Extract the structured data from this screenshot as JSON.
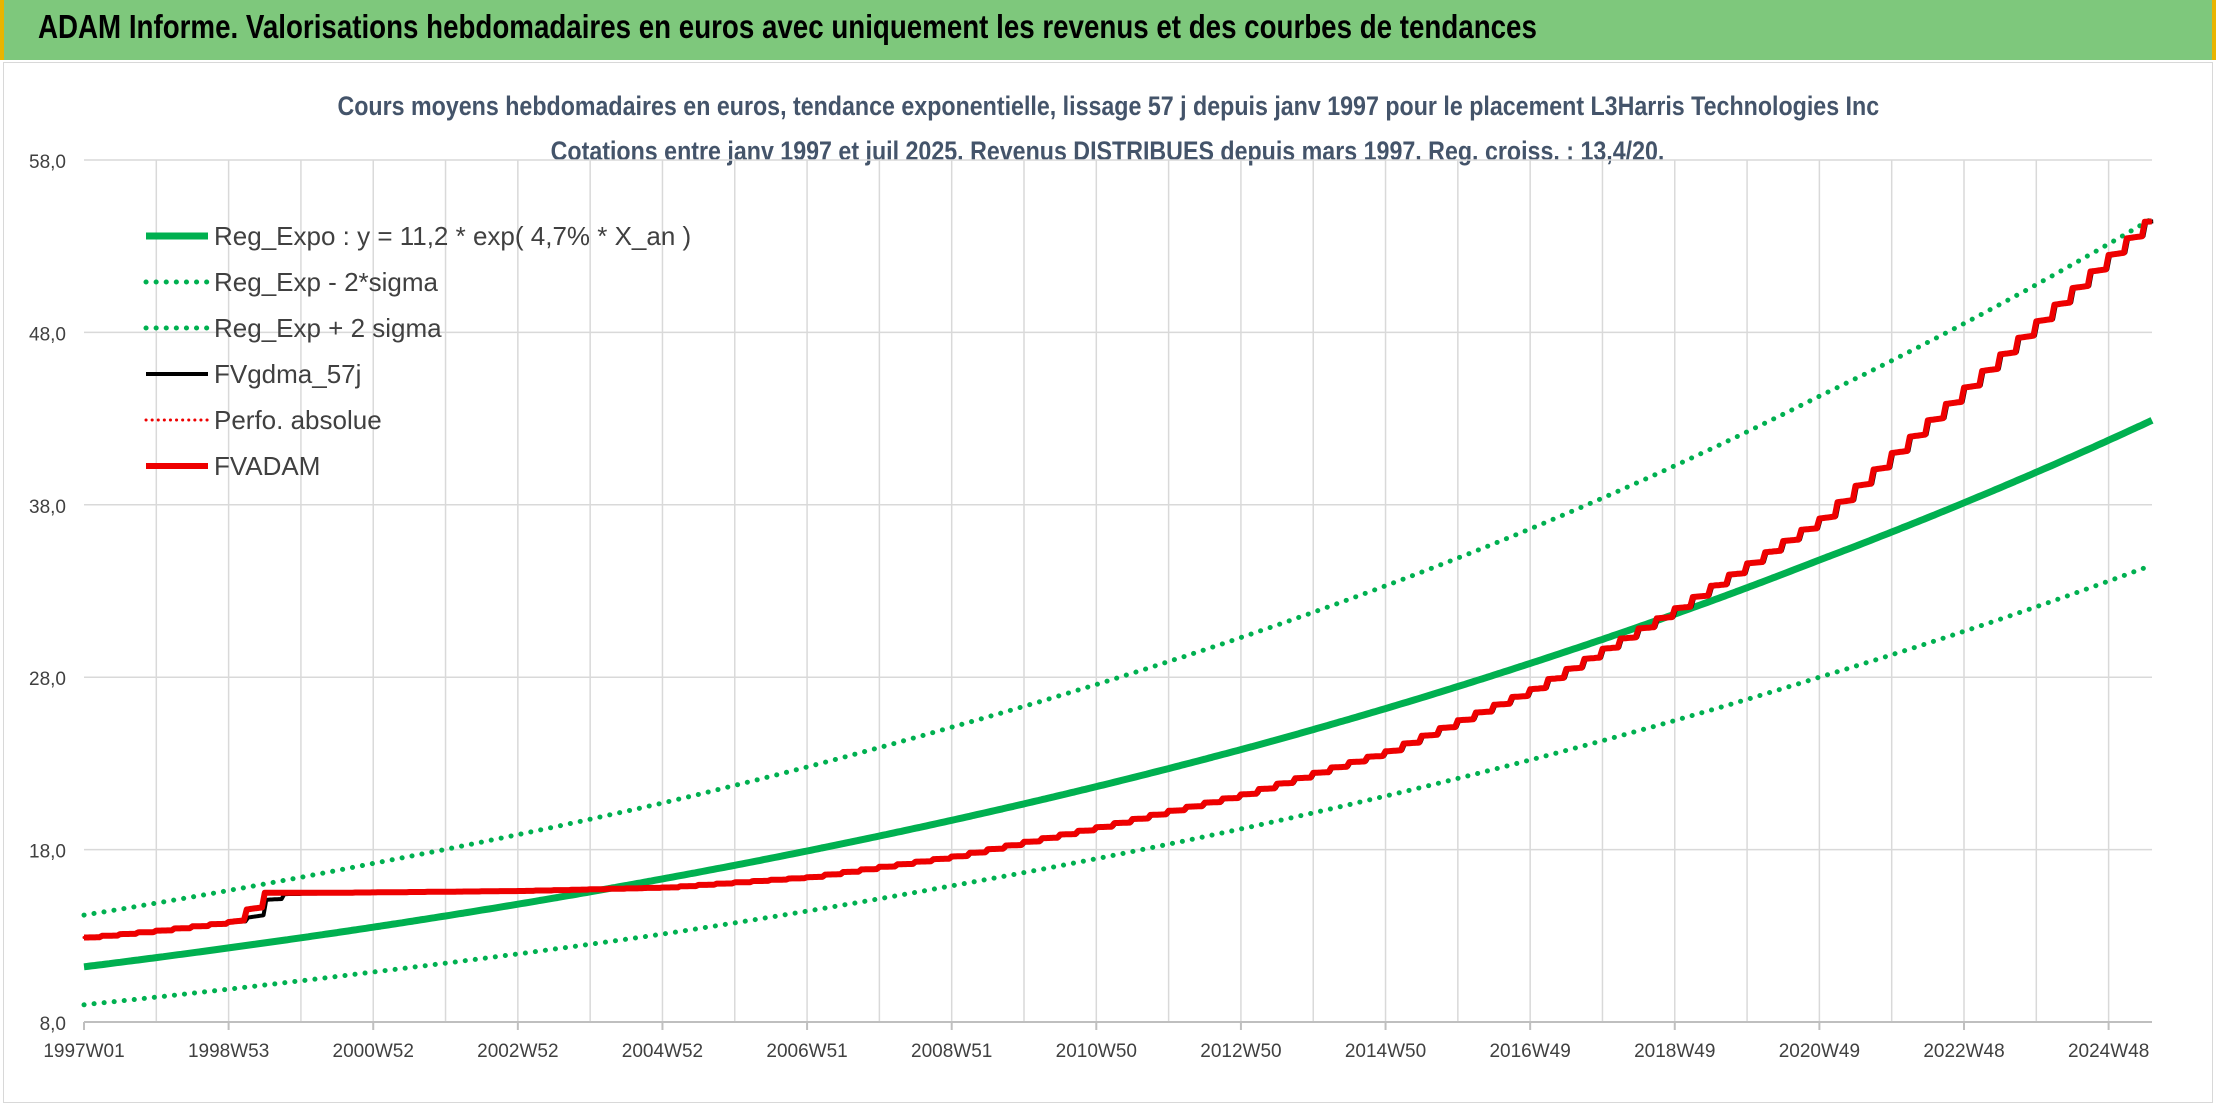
{
  "banner": {
    "title": "ADAM Informe. Valorisations hebdomadaires en euros avec uniquement les revenus et des courbes de tendances"
  },
  "colors": {
    "banner_bg": "#7ec87c",
    "banner_edge": "#e8b400",
    "title_text": "#44546a",
    "reg_green": "#00b050",
    "fvgdma_black": "#000000",
    "fvadam_red": "#ee0000",
    "grid": "#d9d9d9"
  },
  "chart_data": {
    "type": "line",
    "title": "Cours moyens hebdomadaires en euros, tendance exponentielle, lissage 57 j depuis janv 1997 pour le placement L3Harris Technologies Inc",
    "subtitle": "Cotations entre janv 1997 et juil 2025. Revenus DISTRIBUES depuis mars 1997. Reg. croiss. : 13,4/20.",
    "xlabel": "",
    "ylabel": "",
    "ylim": [
      8,
      58
    ],
    "yticks": [
      "58,0",
      "48,0",
      "38,0",
      "28,0",
      "18,0",
      "8,0"
    ],
    "xticks": [
      "1997W01",
      "1998W53",
      "2000W52",
      "2002W52",
      "2004W52",
      "2006W51",
      "2008W51",
      "2010W50",
      "2012W50",
      "2014W50",
      "2016W49",
      "2018W49",
      "2020W49",
      "2022W48",
      "2024W48"
    ],
    "x_years": [
      1997,
      1999,
      2001,
      2003,
      2005,
      2007,
      2009,
      2011,
      2013,
      2015,
      2017,
      2019,
      2021,
      2023,
      2025
    ],
    "x_range_years": [
      1997.0,
      2025.6
    ],
    "grid": true,
    "legend_position": "top-left",
    "series": [
      {
        "name": "Reg_Expo : y = 11,2 * exp( 4,7% *  X_an )",
        "style": "solid-thick",
        "color": "#00b050",
        "x": [
          1997.0,
          2001.0,
          2005.0,
          2009.0,
          2013.0,
          2017.0,
          2021.0,
          2025.6
        ],
        "y": [
          11.2,
          13.5,
          16.3,
          19.7,
          23.8,
          28.8,
          34.8,
          42.9
        ]
      },
      {
        "name": "Reg_Exp - 2*sigma",
        "style": "dotted",
        "color": "#00b050",
        "x": [
          1997.0,
          2001.0,
          2005.0,
          2009.0,
          2013.0,
          2017.0,
          2021.0,
          2025.6
        ],
        "y": [
          9.0,
          10.9,
          13.1,
          15.9,
          19.2,
          23.2,
          28.0,
          34.5
        ]
      },
      {
        "name": "Reg_Exp + 2 sigma",
        "style": "dotted",
        "color": "#00b050",
        "x": [
          1997.0,
          2001.0,
          2005.0,
          2009.0,
          2013.0,
          2017.0,
          2021.0,
          2025.6
        ],
        "y": [
          14.2,
          17.2,
          20.7,
          25.1,
          30.3,
          36.6,
          44.3,
          54.6
        ]
      },
      {
        "name": "FVgdma_57j",
        "style": "solid",
        "color": "#000000",
        "x": [
          1997.0,
          1998.0,
          1999.2,
          1999.42,
          1999.55,
          2000.5,
          2003.0,
          2005.0,
          2007.0,
          2009.0,
          2011.0,
          2013.0,
          2015.0,
          2017.0,
          2019.0,
          2021.0,
          2023.0,
          2025.6
        ],
        "y": [
          12.9,
          13.3,
          13.9,
          14.6,
          15.4,
          15.5,
          15.6,
          15.8,
          16.4,
          17.6,
          19.3,
          21.2,
          23.7,
          27.3,
          32.0,
          37.2,
          44.8,
          54.8
        ]
      },
      {
        "name": "Perfo. absolue",
        "style": "dotted",
        "color": "#ee0000",
        "x": [
          1997.0,
          1998.0,
          1999.2,
          1999.32,
          1999.4,
          2000.5,
          2003.0,
          2005.0,
          2007.0,
          2009.0,
          2011.0,
          2013.0,
          2015.0,
          2017.0,
          2019.0,
          2021.0,
          2023.0,
          2025.6
        ],
        "y": [
          12.9,
          13.3,
          13.9,
          15.4,
          15.5,
          15.5,
          15.6,
          15.8,
          16.4,
          17.6,
          19.3,
          21.2,
          23.7,
          27.3,
          32.0,
          37.2,
          44.8,
          54.8
        ]
      },
      {
        "name": "FVADAM",
        "style": "solid-thick",
        "color": "#ee0000",
        "x": [
          1997.0,
          1998.0,
          1999.2,
          1999.32,
          1999.4,
          2000.5,
          2003.0,
          2005.0,
          2007.0,
          2009.0,
          2011.0,
          2013.0,
          2015.0,
          2017.0,
          2019.0,
          2021.0,
          2023.0,
          2025.6
        ],
        "y": [
          12.9,
          13.3,
          13.9,
          15.4,
          15.5,
          15.5,
          15.6,
          15.8,
          16.4,
          17.6,
          19.3,
          21.2,
          23.7,
          27.3,
          32.0,
          37.2,
          44.8,
          54.8
        ]
      }
    ]
  }
}
